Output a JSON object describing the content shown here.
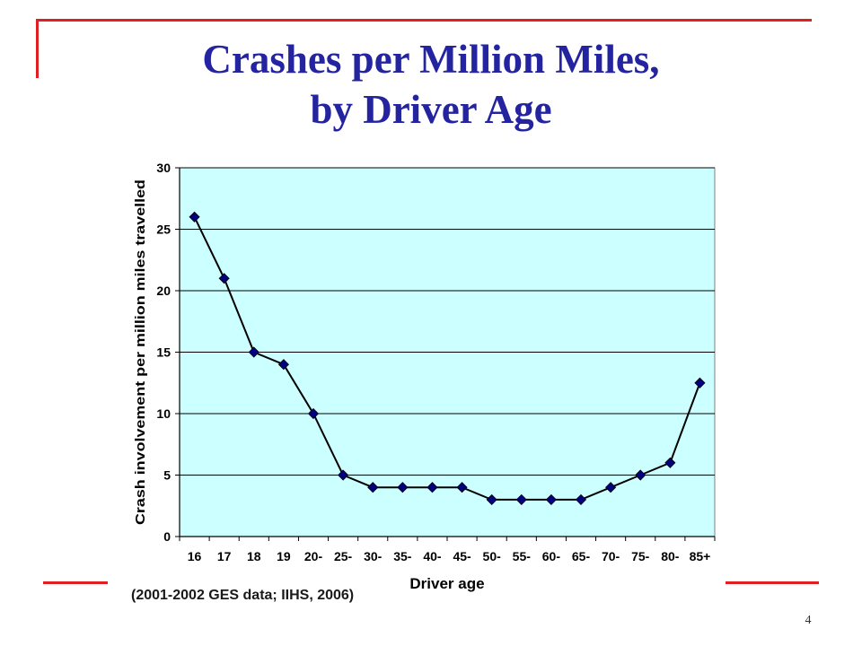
{
  "title": {
    "line1": "Crashes per Million Miles,",
    "line2": "by Driver Age"
  },
  "source": "(2001-2002 GES data; IIHS, 2006)",
  "slide_number": "4",
  "colors": {
    "accent": "#e02020",
    "title": "#2424a0",
    "plot_background": "#ccffff",
    "series": "#000080"
  },
  "chart_data": {
    "type": "line",
    "title": "",
    "xlabel": "Driver age",
    "ylabel": "Crash involvement per million miles travelled",
    "categories": [
      "16",
      "17",
      "18",
      "19",
      "20-",
      "25-",
      "30-",
      "35-",
      "40-",
      "45-",
      "50-",
      "55-",
      "60-",
      "65-",
      "70-",
      "75-",
      "80-",
      "85+"
    ],
    "series": [
      {
        "values": [
          26,
          21,
          15,
          14,
          10,
          5,
          4,
          4,
          4,
          4,
          3,
          3,
          3,
          3,
          4,
          5,
          6,
          12.5
        ]
      }
    ],
    "ylim": [
      0,
      30
    ],
    "yticks": [
      0,
      5,
      10,
      15,
      20,
      25,
      30
    ],
    "grid": true,
    "legend": "none",
    "marker": "diamond"
  }
}
